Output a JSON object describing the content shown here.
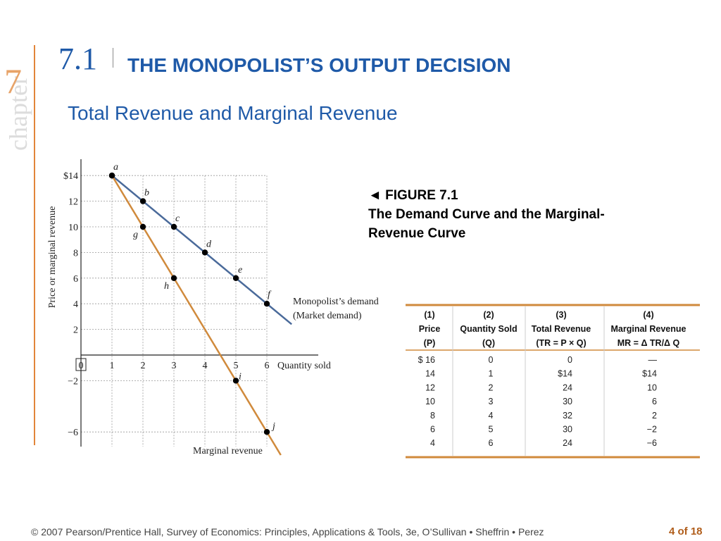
{
  "chapter": {
    "word": "chapter",
    "number": "7"
  },
  "section": {
    "number": "7.1",
    "title": "THE MONOPOLIST’S OUTPUT DECISION"
  },
  "subtitle": "Total Revenue and Marginal Revenue",
  "figure": {
    "label": "◄ FIGURE 7.1",
    "title": "The Demand Curve and the Marginal-\nRevenue Curve"
  },
  "chart_data": {
    "type": "line",
    "xlabel": "Quantity sold",
    "ylabel": "Price or marginal revenue",
    "xlim": [
      0,
      7
    ],
    "ylim": [
      -7,
      15
    ],
    "x_ticks": [
      "0",
      "1",
      "2",
      "3",
      "4",
      "5",
      "6"
    ],
    "y_ticks": [
      {
        "value": 14,
        "label": "$14"
      },
      {
        "value": 12,
        "label": "12"
      },
      {
        "value": 10,
        "label": "10"
      },
      {
        "value": 8,
        "label": "8"
      },
      {
        "value": 6,
        "label": "6"
      },
      {
        "value": 4,
        "label": "4"
      },
      {
        "value": 2,
        "label": "2"
      },
      {
        "value": -2,
        "label": "−2"
      },
      {
        "value": -6,
        "label": "−6"
      }
    ],
    "grid": true,
    "series": [
      {
        "name": "Monopolist’s demand",
        "name2": "(Market demand)",
        "color": "#4a6a9a",
        "points": [
          {
            "x": 1,
            "y": 14,
            "label": "a"
          },
          {
            "x": 2,
            "y": 12,
            "label": "b"
          },
          {
            "x": 3,
            "y": 10,
            "label": "c"
          },
          {
            "x": 4,
            "y": 8,
            "label": "d"
          },
          {
            "x": 5,
            "y": 6,
            "label": "e"
          },
          {
            "x": 6,
            "y": 4,
            "label": "f"
          }
        ]
      },
      {
        "name": "Marginal revenue",
        "color": "#d08a3c",
        "points": [
          {
            "x": 1,
            "y": 14,
            "label": ""
          },
          {
            "x": 2,
            "y": 10,
            "label": "g"
          },
          {
            "x": 3,
            "y": 6,
            "label": "h"
          },
          {
            "x": 5,
            "y": -2,
            "label": "i"
          },
          {
            "x": 6,
            "y": -6,
            "label": "j"
          }
        ]
      }
    ]
  },
  "table": {
    "rule_color": "#d08a3c",
    "headers": [
      [
        "(1)",
        "Price",
        "(P)"
      ],
      [
        "(2)",
        "Quantity Sold",
        "(Q)"
      ],
      [
        "(3)",
        "Total Revenue",
        "(TR = P × Q)"
      ],
      [
        "(4)",
        "Marginal Revenue",
        "MR = Δ TR/Δ Q"
      ]
    ],
    "rows": [
      [
        "$ 16",
        "0",
        "0",
        "—"
      ],
      [
        "14",
        "1",
        "$14",
        "$14"
      ],
      [
        "12",
        "2",
        "24",
        "10"
      ],
      [
        "10",
        "3",
        "30",
        "6"
      ],
      [
        "8",
        "4",
        "32",
        "2"
      ],
      [
        "6",
        "5",
        "30",
        "−2"
      ],
      [
        "4",
        "6",
        "24",
        "−6"
      ]
    ]
  },
  "footer": {
    "credit": "© 2007 Pearson/Prentice Hall, Survey of Economics: Principles, Applications & Tools, 3e, O’Sullivan • Sheffrin • Perez",
    "page": "4 of 18"
  }
}
